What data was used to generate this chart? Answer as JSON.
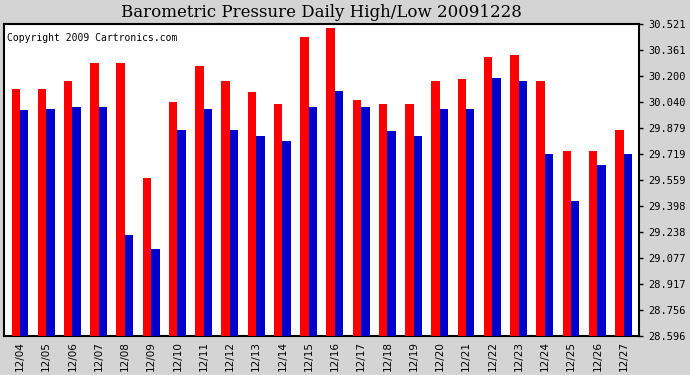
{
  "title": "Barometric Pressure Daily High/Low 20091228",
  "copyright": "Copyright 2009 Cartronics.com",
  "categories": [
    "12/04",
    "12/05",
    "12/06",
    "12/07",
    "12/08",
    "12/09",
    "12/10",
    "12/11",
    "12/12",
    "12/13",
    "12/14",
    "12/15",
    "12/16",
    "12/17",
    "12/18",
    "12/19",
    "12/20",
    "12/21",
    "12/22",
    "12/23",
    "12/24",
    "12/25",
    "12/26",
    "12/27"
  ],
  "highs": [
    30.12,
    30.12,
    30.17,
    30.28,
    30.28,
    29.57,
    30.04,
    30.26,
    30.17,
    30.1,
    30.03,
    30.44,
    30.5,
    30.05,
    30.03,
    30.03,
    30.17,
    30.18,
    30.32,
    30.33,
    30.17,
    29.74,
    29.74,
    29.87
  ],
  "lows": [
    29.99,
    30.0,
    30.01,
    30.01,
    29.22,
    29.13,
    29.87,
    30.0,
    29.87,
    29.83,
    29.8,
    30.01,
    30.11,
    30.01,
    29.86,
    29.83,
    30.0,
    30.0,
    30.19,
    30.17,
    29.72,
    29.43,
    29.65,
    29.72
  ],
  "ymin": 28.596,
  "ymax": 30.521,
  "yticks": [
    28.596,
    28.756,
    28.917,
    29.077,
    29.238,
    29.398,
    29.559,
    29.719,
    29.879,
    30.04,
    30.2,
    30.361,
    30.521
  ],
  "bar_width": 0.32,
  "high_color": "#ff0000",
  "low_color": "#0000cc",
  "bg_color": "#d4d4d4",
  "plot_bg_color": "#ffffff",
  "title_fontsize": 12,
  "copyright_fontsize": 7
}
